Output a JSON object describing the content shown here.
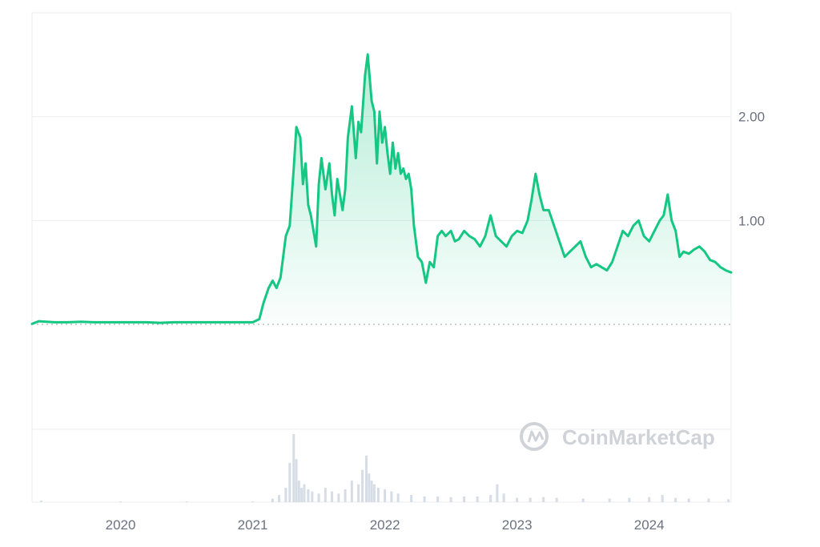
{
  "chart_data": {
    "type": "area",
    "watermark": "CoinMarketCap",
    "x_tick_labels": [
      "2020",
      "2021",
      "2022",
      "2023",
      "2024"
    ],
    "y_tick_labels": [
      "2.00",
      "1.00"
    ],
    "ylim": [
      0,
      3.0
    ],
    "xlim": [
      2019.33,
      2024.62
    ],
    "baseline_value": 0,
    "grid": true,
    "colors": {
      "line": "#16c784",
      "fill": "#16c784",
      "grid": "#eceef1",
      "baseline": "#9aa0a6",
      "volume": "#d6dde6"
    },
    "series": [
      {
        "x": [
          2019.33,
          2019.38,
          2019.5,
          2019.6,
          2019.7,
          2019.8,
          2019.9,
          2020.0,
          2020.1,
          2020.2,
          2020.3,
          2020.4,
          2020.5,
          2020.6,
          2020.7,
          2020.8,
          2020.9,
          2021.0,
          2021.05,
          2021.08,
          2021.12,
          2021.15,
          2021.18,
          2021.21,
          2021.25,
          2021.28,
          2021.31,
          2021.33,
          2021.36,
          2021.38,
          2021.4,
          2021.42,
          2021.44,
          2021.46,
          2021.48,
          2021.5,
          2021.52,
          2021.55,
          2021.58,
          2021.6,
          2021.62,
          2021.64,
          2021.66,
          2021.68,
          2021.7,
          2021.72,
          2021.75,
          2021.78,
          2021.8,
          2021.82,
          2021.85,
          2021.87,
          2021.9,
          2021.92,
          2021.94,
          2021.96,
          2021.98,
          2022.0,
          2022.02,
          2022.04,
          2022.06,
          2022.08,
          2022.1,
          2022.12,
          2022.14,
          2022.16,
          2022.18,
          2022.2,
          2022.22,
          2022.25,
          2022.28,
          2022.31,
          2022.34,
          2022.37,
          2022.4,
          2022.43,
          2022.46,
          2022.5,
          2022.53,
          2022.56,
          2022.6,
          2022.64,
          2022.68,
          2022.72,
          2022.76,
          2022.8,
          2022.84,
          2022.88,
          2022.92,
          2022.96,
          2023.0,
          2023.04,
          2023.08,
          2023.11,
          2023.14,
          2023.17,
          2023.2,
          2023.24,
          2023.28,
          2023.32,
          2023.36,
          2023.4,
          2023.44,
          2023.48,
          2023.52,
          2023.56,
          2023.6,
          2023.64,
          2023.68,
          2023.72,
          2023.76,
          2023.8,
          2023.84,
          2023.88,
          2023.92,
          2023.96,
          2024.0,
          2024.04,
          2024.08,
          2024.11,
          2024.14,
          2024.17,
          2024.2,
          2024.23,
          2024.26,
          2024.3,
          2024.34,
          2024.38,
          2024.42,
          2024.46,
          2024.5,
          2024.54,
          2024.58,
          2024.62
        ],
        "values": [
          0.005,
          0.03,
          0.02,
          0.02,
          0.025,
          0.02,
          0.02,
          0.02,
          0.02,
          0.02,
          0.015,
          0.02,
          0.02,
          0.02,
          0.02,
          0.02,
          0.02,
          0.02,
          0.05,
          0.2,
          0.35,
          0.42,
          0.35,
          0.45,
          0.85,
          0.95,
          1.5,
          1.9,
          1.8,
          1.35,
          1.55,
          1.15,
          1.05,
          0.9,
          0.75,
          1.35,
          1.6,
          1.3,
          1.55,
          1.25,
          1.05,
          1.4,
          1.25,
          1.1,
          1.3,
          1.8,
          2.1,
          1.6,
          1.95,
          1.85,
          2.4,
          2.6,
          2.15,
          2.05,
          1.55,
          2.05,
          1.75,
          1.9,
          1.65,
          1.45,
          1.75,
          1.5,
          1.65,
          1.45,
          1.5,
          1.4,
          1.45,
          1.3,
          0.95,
          0.65,
          0.6,
          0.4,
          0.6,
          0.55,
          0.85,
          0.9,
          0.85,
          0.9,
          0.8,
          0.82,
          0.9,
          0.85,
          0.82,
          0.75,
          0.85,
          1.05,
          0.85,
          0.8,
          0.75,
          0.85,
          0.9,
          0.88,
          1.0,
          1.2,
          1.45,
          1.25,
          1.1,
          1.1,
          0.95,
          0.8,
          0.65,
          0.7,
          0.75,
          0.8,
          0.65,
          0.55,
          0.58,
          0.55,
          0.52,
          0.6,
          0.75,
          0.9,
          0.85,
          0.95,
          1.0,
          0.85,
          0.8,
          0.9,
          1.0,
          1.05,
          1.25,
          1.0,
          0.9,
          0.65,
          0.7,
          0.68,
          0.72,
          0.75,
          0.7,
          0.62,
          0.6,
          0.55,
          0.52,
          0.5
        ]
      }
    ],
    "volume": {
      "x": [
        2019.4,
        2020.0,
        2020.5,
        2021.0,
        2021.15,
        2021.2,
        2021.25,
        2021.28,
        2021.31,
        2021.33,
        2021.35,
        2021.37,
        2021.39,
        2021.42,
        2021.45,
        2021.5,
        2021.55,
        2021.6,
        2021.65,
        2021.7,
        2021.75,
        2021.8,
        2021.83,
        2021.86,
        2021.88,
        2021.9,
        2021.92,
        2021.95,
        2022.0,
        2022.05,
        2022.1,
        2022.2,
        2022.3,
        2022.4,
        2022.5,
        2022.6,
        2022.7,
        2022.8,
        2022.85,
        2022.9,
        2023.0,
        2023.1,
        2023.2,
        2023.3,
        2023.5,
        2023.7,
        2023.85,
        2024.0,
        2024.1,
        2024.2,
        2024.3,
        2024.45,
        2024.6
      ],
      "values": [
        0.02,
        0.01,
        0.01,
        0.01,
        0.05,
        0.1,
        0.2,
        0.55,
        0.95,
        0.6,
        0.3,
        0.2,
        0.25,
        0.18,
        0.15,
        0.12,
        0.2,
        0.15,
        0.12,
        0.18,
        0.3,
        0.25,
        0.45,
        0.65,
        0.4,
        0.3,
        0.25,
        0.2,
        0.18,
        0.15,
        0.12,
        0.1,
        0.08,
        0.08,
        0.07,
        0.08,
        0.08,
        0.1,
        0.25,
        0.12,
        0.06,
        0.06,
        0.07,
        0.06,
        0.05,
        0.05,
        0.06,
        0.07,
        0.1,
        0.06,
        0.05,
        0.05,
        0.04
      ]
    }
  }
}
